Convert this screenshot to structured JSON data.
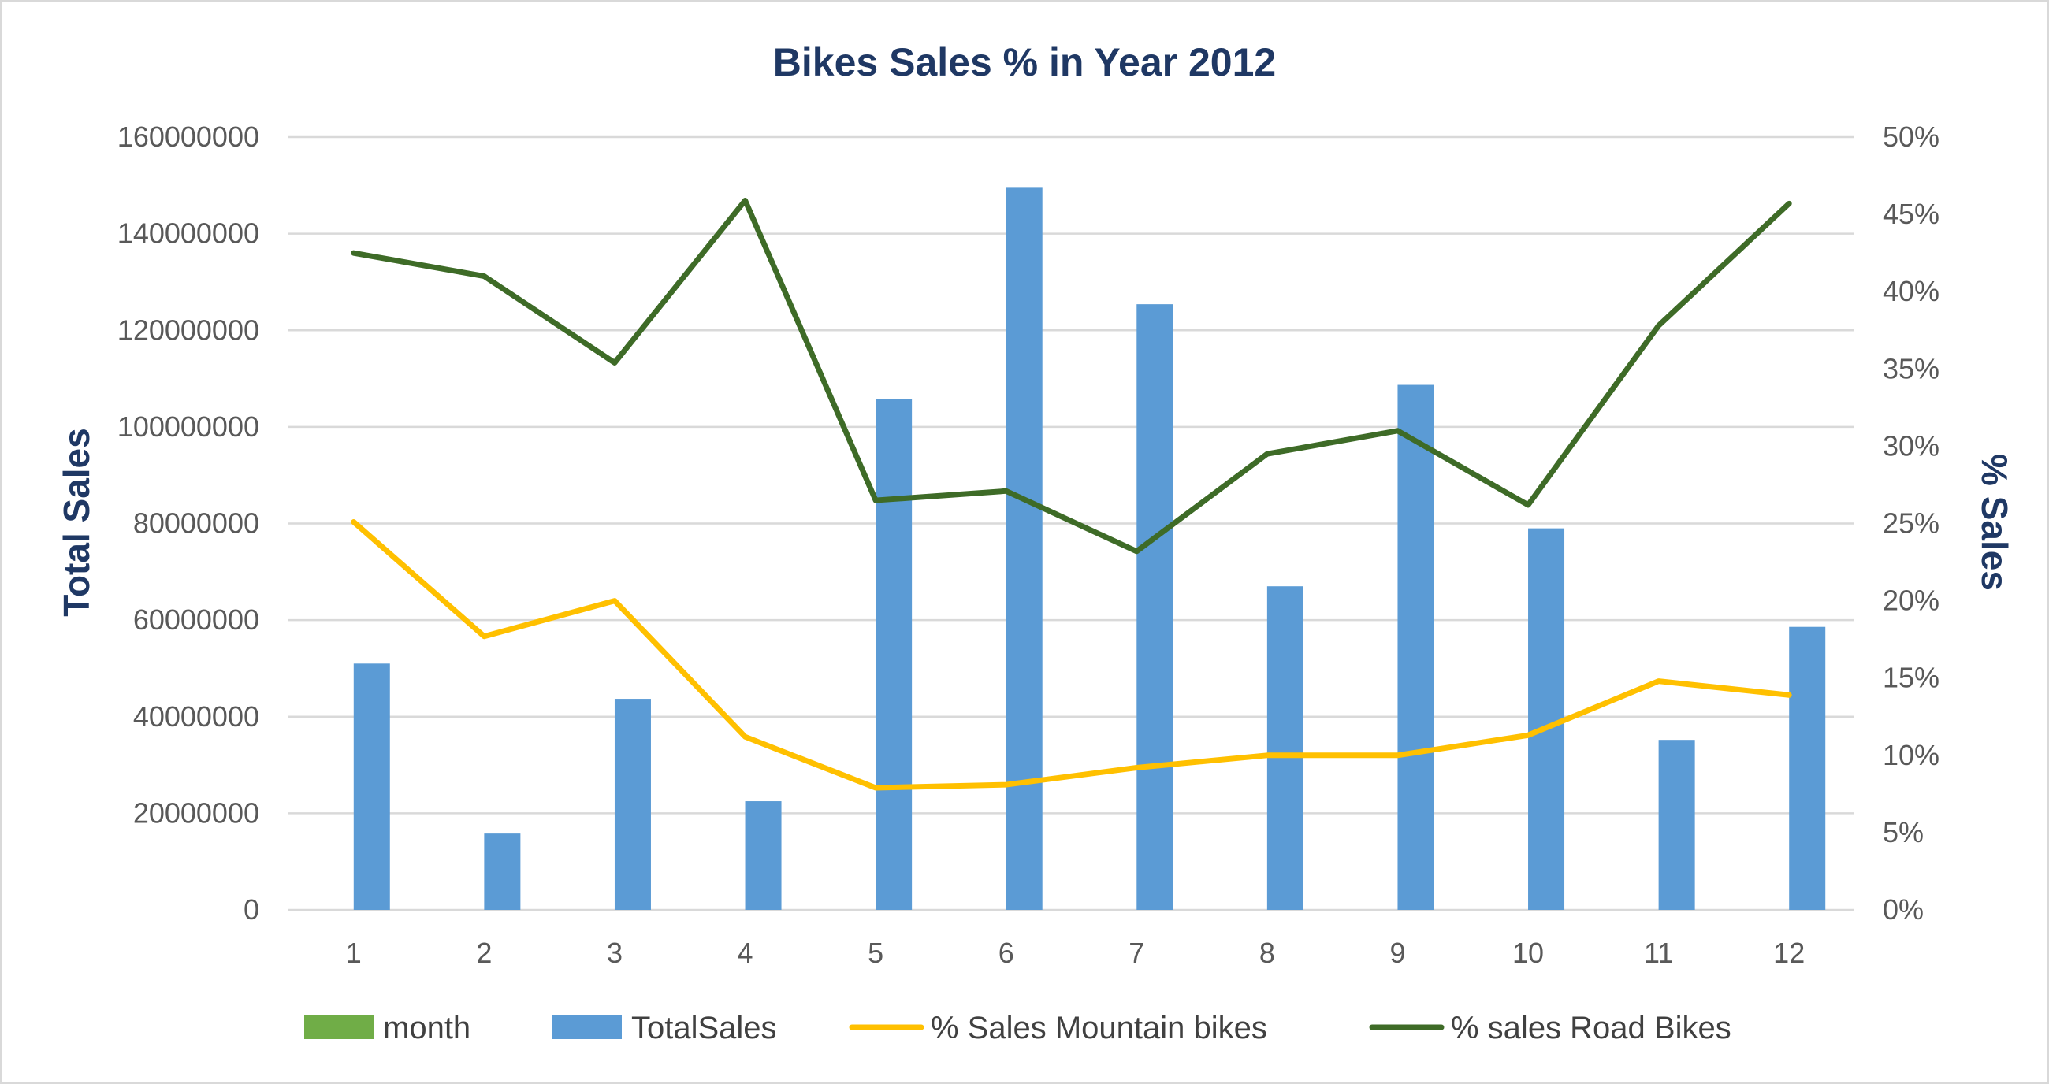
{
  "chart_data": {
    "type": "bar",
    "title": "Bikes Sales % in Year 2012",
    "ylabel": "Total Sales",
    "y2label": "% Sales",
    "xlabel": "",
    "categories": [
      "1",
      "2",
      "3",
      "4",
      "5",
      "6",
      "7",
      "8",
      "9",
      "10",
      "11",
      "12"
    ],
    "ylim": [
      0,
      160000000
    ],
    "yticks": [
      "0",
      "20000000",
      "40000000",
      "60000000",
      "80000000",
      "100000000",
      "120000000",
      "140000000",
      "160000000"
    ],
    "y2lim": [
      0,
      0.5
    ],
    "y2ticks": [
      "0%",
      "5%",
      "10%",
      "15%",
      "20%",
      "25%",
      "30%",
      "35%",
      "40%",
      "45%",
      "50%"
    ],
    "grid": true,
    "legend_position": "bottom",
    "legend": [
      "month",
      "TotalSales",
      "% Sales Mountain bikes",
      "% sales Road Bikes"
    ],
    "series": [
      {
        "name": "month",
        "type": "bar",
        "axis": "left",
        "color": "#70ad47",
        "values": [
          1,
          2,
          3,
          4,
          5,
          6,
          7,
          8,
          9,
          10,
          11,
          12
        ]
      },
      {
        "name": "TotalSales",
        "type": "bar",
        "axis": "left",
        "color": "#5b9bd5",
        "values": [
          51000000,
          15800000,
          43700000,
          22500000,
          105700000,
          149500000,
          125400000,
          67000000,
          108700000,
          79000000,
          35200000,
          58600000
        ]
      },
      {
        "name": "% Sales Mountain bikes",
        "type": "line",
        "axis": "right",
        "color": "#ffc000",
        "values": [
          0.251,
          0.177,
          0.2,
          0.112,
          0.079,
          0.081,
          0.092,
          0.1,
          0.1,
          0.113,
          0.148,
          0.139
        ]
      },
      {
        "name": "% sales Road Bikes",
        "type": "line",
        "axis": "right",
        "color": "#3e6b27",
        "values": [
          0.425,
          0.41,
          0.354,
          0.459,
          0.265,
          0.271,
          0.232,
          0.295,
          0.31,
          0.262,
          0.378,
          0.457
        ]
      }
    ],
    "colors": {
      "title": "#1f3864",
      "axis_title": "#1f3864"
    }
  }
}
